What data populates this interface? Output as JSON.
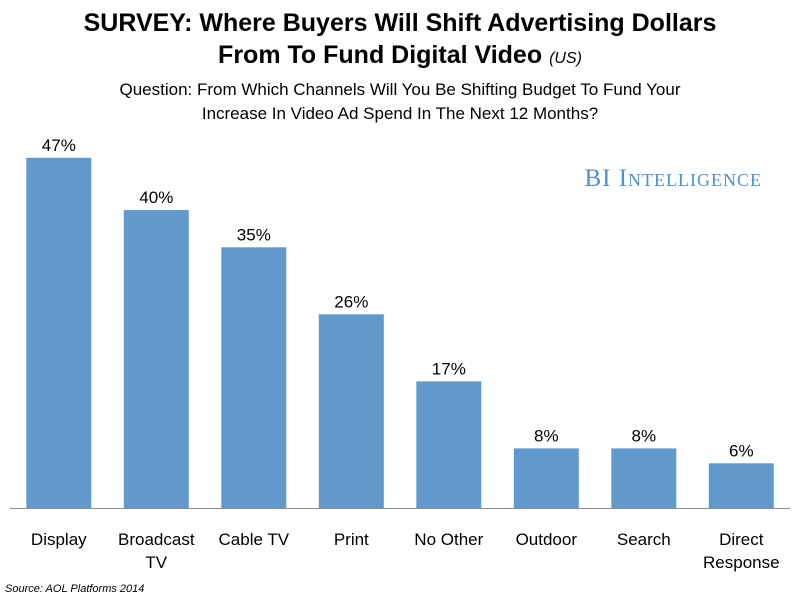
{
  "chart_data": {
    "type": "bar",
    "title": {
      "line1": "SURVEY: Where Buyers Will Shift Advertising Dollars",
      "line2": "From To Fund Digital Video",
      "note": "(US)"
    },
    "subtitle": {
      "line1": "Question: From Which Channels Will You Be Shifting Budget To Fund Your",
      "line2": "Increase In Video Ad Spend In The Next 12 Months?"
    },
    "categories": [
      [
        "Display"
      ],
      [
        "Broadcast",
        "TV"
      ],
      [
        "Cable TV"
      ],
      [
        "Print"
      ],
      [
        "No Other"
      ],
      [
        "Outdoor"
      ],
      [
        "Search"
      ],
      [
        "Direct",
        "Response"
      ]
    ],
    "values": [
      47,
      40,
      35,
      26,
      17,
      8,
      8,
      6
    ],
    "value_labels": [
      "47%",
      "40%",
      "35%",
      "26%",
      "17%",
      "8%",
      "8%",
      "6%"
    ],
    "ylim": [
      0,
      50
    ],
    "grid": false,
    "legend": "none",
    "bar_color": "#6199cd",
    "xlabel": "",
    "ylabel": ""
  },
  "watermark": "BI Intelligence",
  "source": "Source: AOL Platforms 2014"
}
